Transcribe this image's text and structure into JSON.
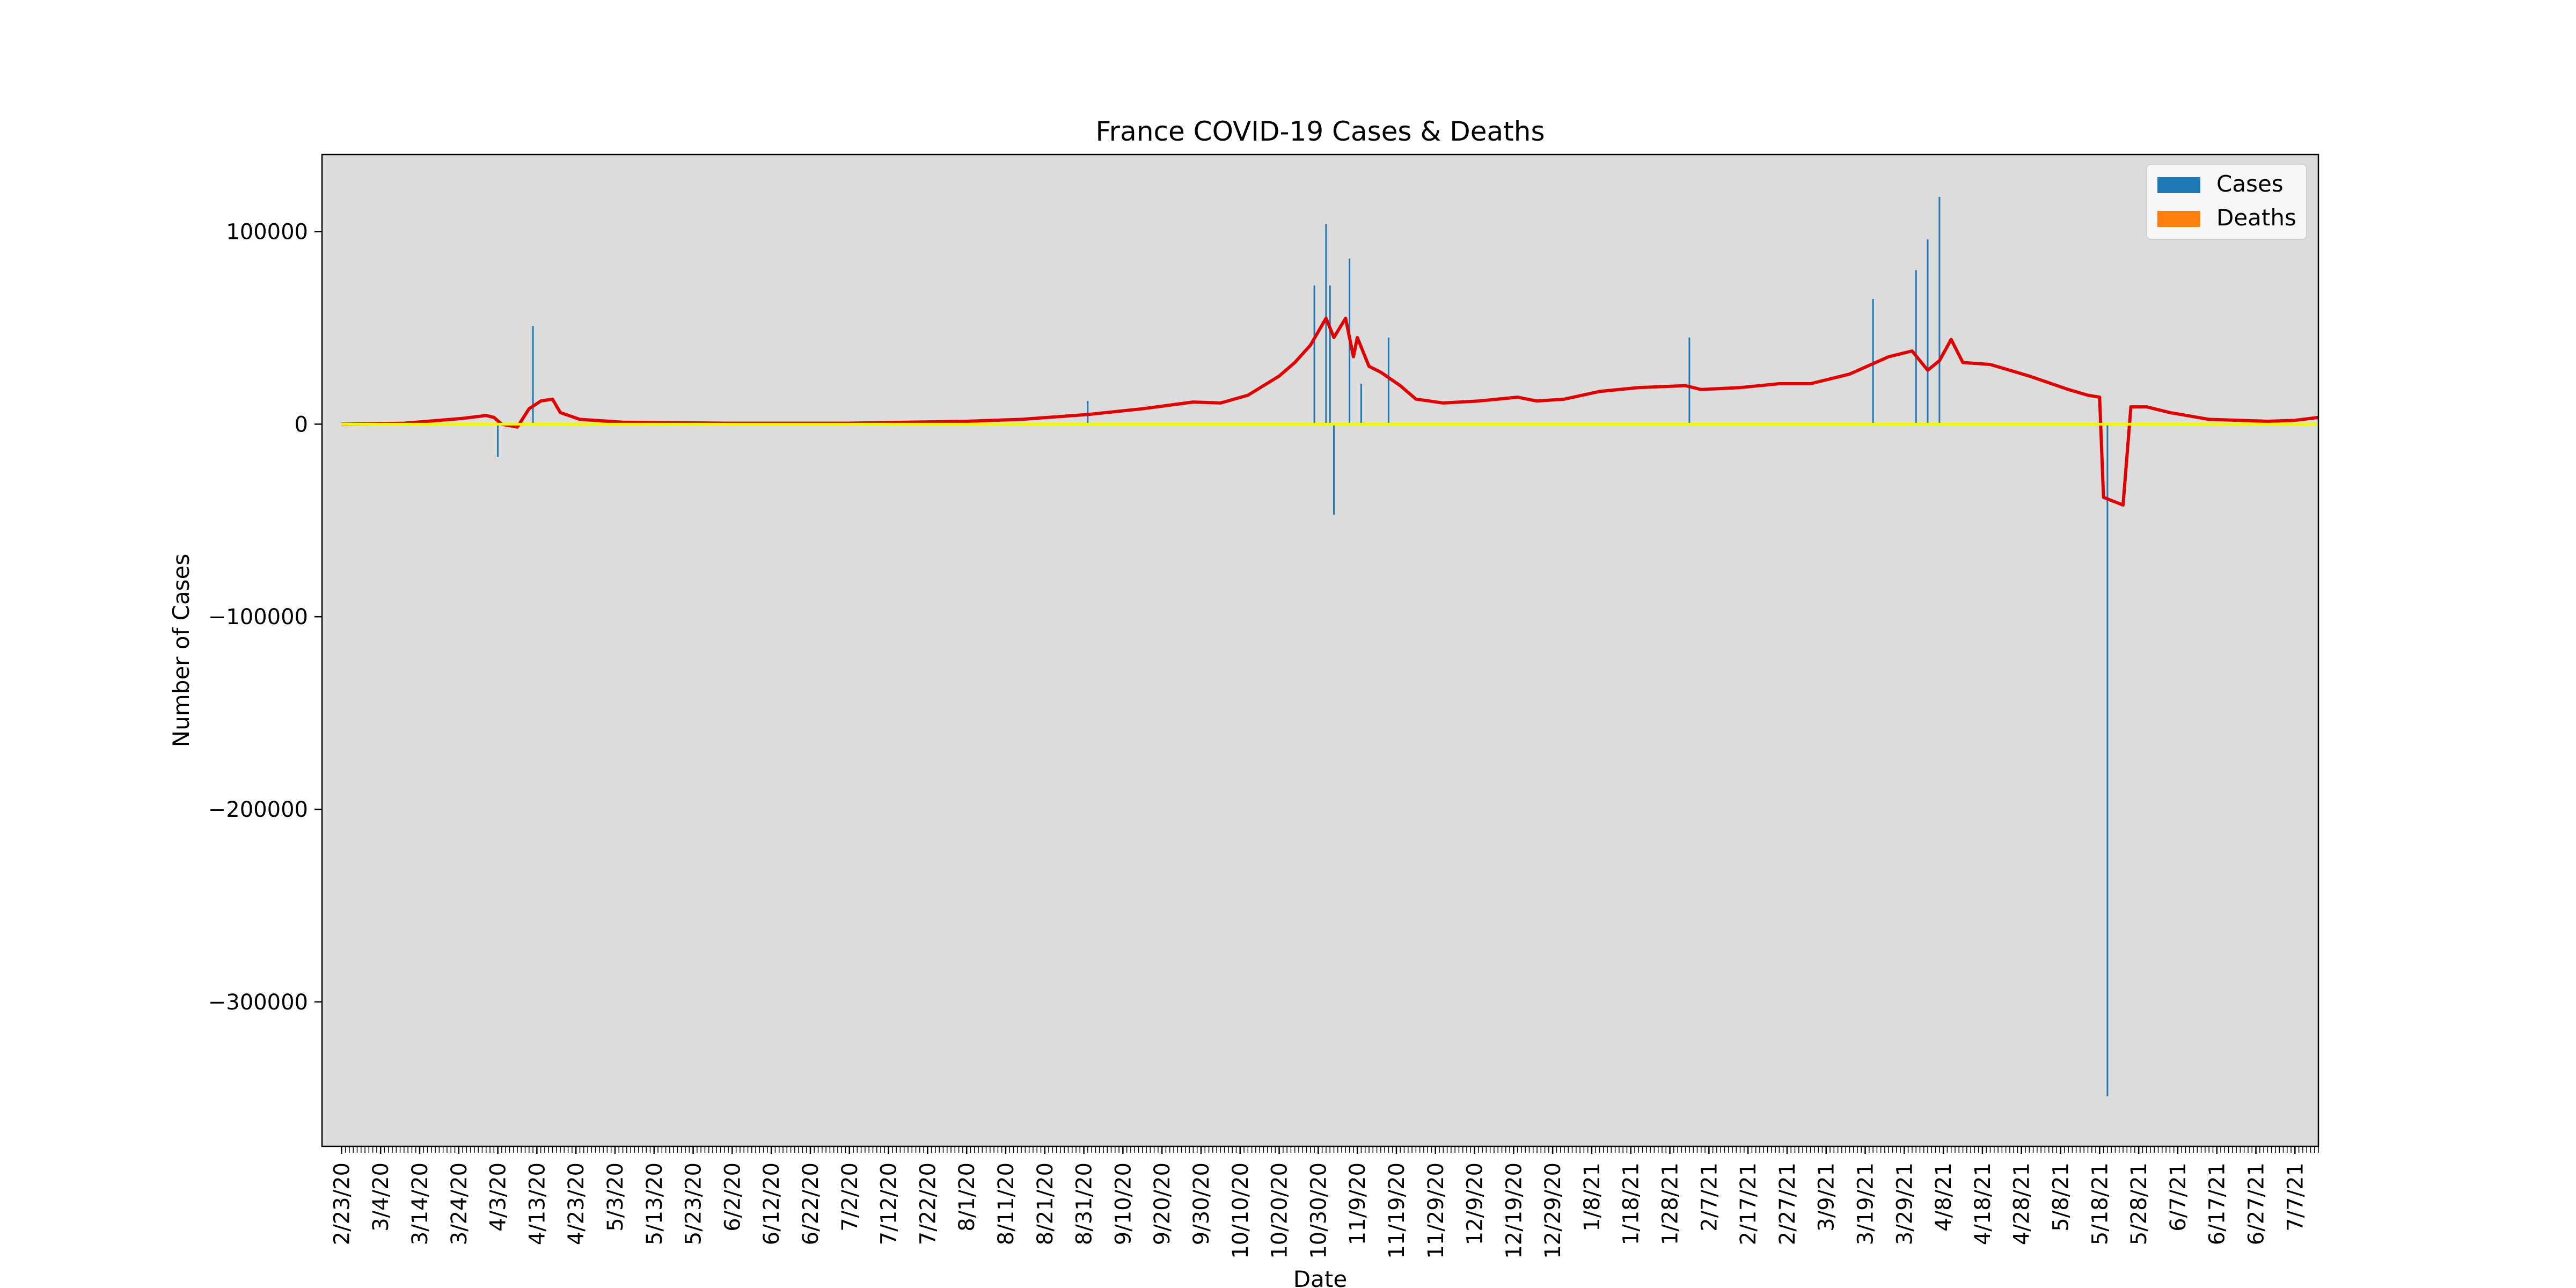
{
  "chart_data": {
    "type": "bar",
    "title": "France COVID-19 Cases & Deaths",
    "xlabel": "Date",
    "ylabel": "Number of Cases",
    "ylim": [
      -375000,
      140000
    ],
    "yticks": [
      100000,
      0,
      -100000,
      -200000,
      -300000
    ],
    "ytick_labels": [
      "100000",
      "0",
      "−100000",
      "−200000",
      "−300000"
    ],
    "x_start": "2020-02-23",
    "x_end": "2021-07-13",
    "xtick_labels": [
      "2/23/20",
      "3/4/20",
      "3/14/20",
      "3/24/20",
      "4/3/20",
      "4/13/20",
      "4/23/20",
      "5/3/20",
      "5/13/20",
      "5/23/20",
      "6/2/20",
      "6/12/20",
      "6/22/20",
      "7/2/20",
      "7/12/20",
      "7/22/20",
      "8/1/20",
      "8/11/20",
      "8/21/20",
      "8/31/20",
      "9/10/20",
      "9/20/20",
      "9/30/20",
      "10/10/20",
      "10/20/20",
      "10/30/20",
      "11/9/20",
      "11/19/20",
      "11/29/20",
      "12/9/20",
      "12/19/20",
      "12/29/20",
      "1/8/21",
      "1/18/21",
      "1/28/21",
      "2/7/21",
      "2/17/21",
      "2/27/21",
      "3/9/21",
      "3/19/21",
      "3/29/21",
      "4/8/21",
      "4/18/21",
      "4/28/21",
      "5/8/21",
      "5/18/21",
      "5/28/21",
      "6/7/21",
      "6/17/21",
      "6/27/21",
      "7/7/21"
    ],
    "legend": {
      "placement": "top-right",
      "entries": [
        {
          "label": "Cases",
          "color": "#1f77b4"
        },
        {
          "label": "Deaths",
          "color": "#ff7f0e"
        }
      ]
    },
    "grid": false,
    "background_color": "#dcdcdc",
    "series": [
      {
        "name": "Cases",
        "kind": "bar",
        "color": "#1f77b4",
        "points": [
          [
            "2020-04-03",
            -17000
          ],
          [
            "2020-04-12",
            51000
          ],
          [
            "2020-09-01",
            12000
          ],
          [
            "2020-10-29",
            72000
          ],
          [
            "2020-11-01",
            104000
          ],
          [
            "2020-11-02",
            72000
          ],
          [
            "2020-11-03",
            -47000
          ],
          [
            "2020-11-07",
            86000
          ],
          [
            "2020-11-10",
            21000
          ],
          [
            "2020-11-17",
            45000
          ],
          [
            "2021-02-02",
            45000
          ],
          [
            "2021-03-21",
            65000
          ],
          [
            "2021-04-01",
            80000
          ],
          [
            "2021-04-04",
            96000
          ],
          [
            "2021-04-07",
            118000
          ],
          [
            "2021-05-20",
            -349000
          ]
        ]
      },
      {
        "name": "",
        "kind": "line",
        "color": "#e00000",
        "points": [
          [
            "2020-02-23",
            0
          ],
          [
            "2020-03-10",
            500
          ],
          [
            "2020-03-25",
            3000
          ],
          [
            "2020-03-31",
            4500
          ],
          [
            "2020-04-02",
            3500
          ],
          [
            "2020-04-04",
            0
          ],
          [
            "2020-04-08",
            -1500
          ],
          [
            "2020-04-11",
            8000
          ],
          [
            "2020-04-14",
            12000
          ],
          [
            "2020-04-17",
            13000
          ],
          [
            "2020-04-19",
            6000
          ],
          [
            "2020-04-24",
            2500
          ],
          [
            "2020-05-05",
            1000
          ],
          [
            "2020-06-01",
            500
          ],
          [
            "2020-07-01",
            500
          ],
          [
            "2020-08-01",
            1500
          ],
          [
            "2020-08-15",
            2500
          ],
          [
            "2020-09-01",
            5000
          ],
          [
            "2020-09-15",
            8000
          ],
          [
            "2020-09-28",
            11500
          ],
          [
            "2020-10-05",
            11000
          ],
          [
            "2020-10-12",
            15000
          ],
          [
            "2020-10-20",
            25000
          ],
          [
            "2020-10-24",
            32000
          ],
          [
            "2020-10-28",
            41000
          ],
          [
            "2020-11-01",
            55000
          ],
          [
            "2020-11-03",
            45000
          ],
          [
            "2020-11-06",
            55000
          ],
          [
            "2020-11-08",
            35000
          ],
          [
            "2020-11-09",
            45000
          ],
          [
            "2020-11-12",
            30000
          ],
          [
            "2020-11-15",
            27000
          ],
          [
            "2020-11-20",
            20000
          ],
          [
            "2020-11-24",
            13000
          ],
          [
            "2020-12-01",
            11000
          ],
          [
            "2020-12-10",
            12000
          ],
          [
            "2020-12-20",
            14000
          ],
          [
            "2020-12-25",
            12000
          ],
          [
            "2021-01-01",
            13000
          ],
          [
            "2021-01-10",
            17000
          ],
          [
            "2021-01-20",
            19000
          ],
          [
            "2021-02-01",
            20000
          ],
          [
            "2021-02-05",
            18000
          ],
          [
            "2021-02-15",
            19000
          ],
          [
            "2021-02-25",
            21000
          ],
          [
            "2021-03-05",
            21000
          ],
          [
            "2021-03-15",
            26000
          ],
          [
            "2021-03-25",
            35000
          ],
          [
            "2021-03-31",
            38000
          ],
          [
            "2021-04-04",
            28000
          ],
          [
            "2021-04-07",
            33000
          ],
          [
            "2021-04-10",
            44000
          ],
          [
            "2021-04-13",
            32000
          ],
          [
            "2021-04-20",
            31000
          ],
          [
            "2021-04-30",
            25000
          ],
          [
            "2021-05-10",
            18000
          ],
          [
            "2021-05-15",
            15000
          ],
          [
            "2021-05-18",
            14000
          ],
          [
            "2021-05-19",
            -38000
          ],
          [
            "2021-05-24",
            -42000
          ],
          [
            "2021-05-26",
            9000
          ],
          [
            "2021-05-30",
            9000
          ],
          [
            "2021-06-05",
            6000
          ],
          [
            "2021-06-15",
            2500
          ],
          [
            "2021-06-30",
            1500
          ],
          [
            "2021-07-07",
            2000
          ],
          [
            "2021-07-13",
            3500
          ]
        ]
      },
      {
        "name": "",
        "kind": "line",
        "color": "#f5f50a",
        "points": [
          [
            "2020-02-23",
            0
          ],
          [
            "2021-07-13",
            0
          ]
        ]
      }
    ]
  }
}
